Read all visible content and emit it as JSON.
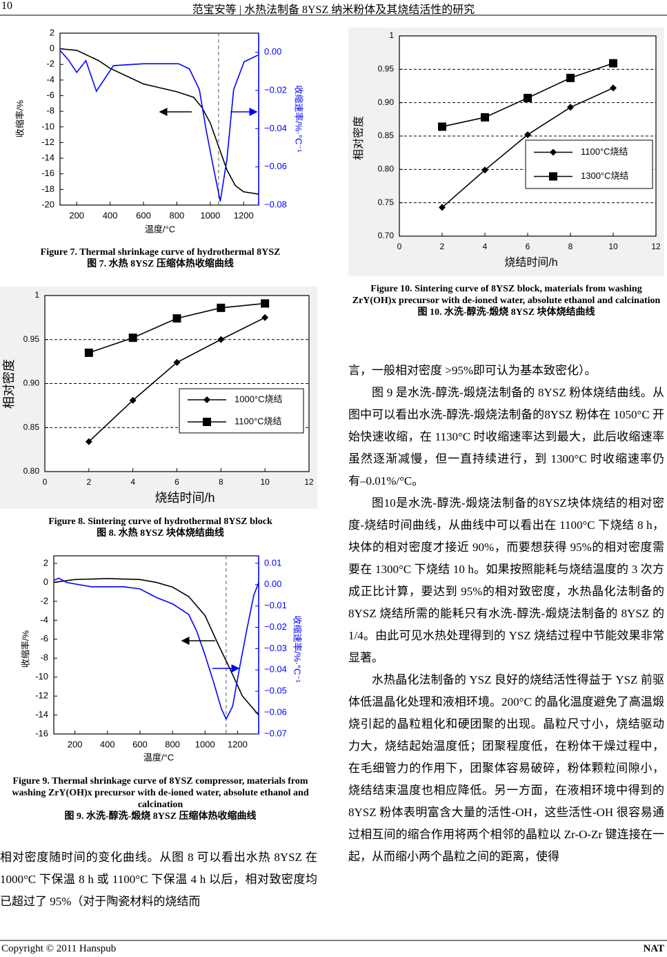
{
  "header": {
    "page": "10",
    "running_title": "范宝安等 | 水热法制备 8YSZ 纳米粉体及其烧结活性的研究"
  },
  "chart_data": [
    {
      "type": "line",
      "xlabel": "温度/°C",
      "ylabel": "收缩率/%",
      "y2label": "收缩速率/%·°C⁻¹",
      "xlim": [
        100,
        1290
      ],
      "xticks": [
        200,
        400,
        600,
        800,
        1000,
        1200
      ],
      "ylim": [
        -20,
        2
      ],
      "yticks": [
        -20,
        -18,
        -16,
        -14,
        -12,
        -10,
        -8,
        -6,
        -4,
        -2,
        0,
        2
      ],
      "y2lim": [
        -0.08,
        0.01
      ],
      "y2ticks": [
        {
          "value": -0.08,
          "label": "−0.08"
        },
        {
          "value": -0.06,
          "label": "−0.06"
        },
        {
          "value": -0.04,
          "label": "−0.04"
        },
        {
          "value": -0.02,
          "label": "−0.02"
        },
        {
          "value": 0,
          "label": "0.00"
        }
      ],
      "grid": false,
      "vline": 1050,
      "series": [
        {
          "name": "收缩率",
          "color": "#000000",
          "marker": "none",
          "x": [
            100,
            200,
            280,
            330,
            400,
            500,
            600,
            700,
            800,
            900,
            950,
            1000,
            1050,
            1100,
            1150,
            1200,
            1290
          ],
          "values": [
            0,
            -0.2,
            -1,
            -1.5,
            -2.5,
            -3.5,
            -4.5,
            -5,
            -5.5,
            -6.2,
            -7.5,
            -9.5,
            -12.5,
            -15.5,
            -17.5,
            -18.3,
            -18.6
          ]
        },
        {
          "name": "收缩速率",
          "color": "#0000ff",
          "marker": "none",
          "axis": "y2",
          "x": [
            100,
            150,
            200,
            255,
            318,
            420,
            600,
            810,
            875,
            935,
            976,
            1025,
            1060,
            1100,
            1140,
            1203,
            1286
          ],
          "values": [
            0.001,
            -0.004,
            -0.0105,
            -0.0044,
            -0.0204,
            -0.007,
            -0.006,
            -0.006,
            -0.0087,
            -0.0196,
            -0.041,
            -0.063,
            -0.078,
            -0.056,
            -0.0196,
            -0.005,
            -0.0015
          ]
        }
      ]
    },
    {
      "type": "line",
      "xlabel": "烧结时间/h",
      "ylabel": "相对密度",
      "xlim": [
        0,
        12
      ],
      "xticks": [
        0,
        2,
        4,
        6,
        8,
        10,
        12
      ],
      "ylim": [
        0.8,
        1
      ],
      "yticks": [
        {
          "value": 0.8,
          "label": "0.80"
        },
        0.85,
        {
          "value": 0.9,
          "label": "0.90"
        },
        0.95,
        1
      ],
      "grid": true,
      "legend": "lower right",
      "series": [
        {
          "name": "1000°C烧结",
          "color": "#000000",
          "marker": "diamond",
          "x": [
            2,
            4,
            6,
            8,
            10
          ],
          "values": [
            0.834,
            0.881,
            0.924,
            0.95,
            0.975
          ]
        },
        {
          "name": "1100°C烧结",
          "color": "#000000",
          "marker": "square",
          "x": [
            2,
            4,
            6,
            8,
            10
          ],
          "values": [
            0.935,
            0.952,
            0.974,
            0.986,
            0.991
          ]
        }
      ]
    },
    {
      "type": "line",
      "xlabel": "温度/°C",
      "ylabel": "收缩率/%",
      "y2label": "收缩速率/%·°C⁻¹",
      "xlim": [
        70,
        1330
      ],
      "xticks": [
        200,
        400,
        600,
        800,
        1000,
        1200
      ],
      "ylim": [
        -16,
        2.8
      ],
      "yticks": [
        -16,
        -14,
        -12,
        -10,
        -8,
        -6,
        -4,
        -2,
        0,
        2
      ],
      "y2lim": [
        -0.07,
        0.0135
      ],
      "y2ticks": [
        {
          "value": -0.07,
          "label": "−0.07"
        },
        {
          "value": -0.06,
          "label": "−0.06"
        },
        {
          "value": -0.05,
          "label": "−0.05"
        },
        {
          "value": -0.04,
          "label": "−0.04"
        },
        {
          "value": -0.03,
          "label": "−0.03"
        },
        {
          "value": -0.02,
          "label": "−0.02"
        },
        {
          "value": -0.01,
          "label": "−0.01"
        },
        {
          "value": 0,
          "label": "0.00"
        },
        0.01
      ],
      "grid": false,
      "vline": 1130,
      "series": [
        {
          "name": "收缩率",
          "color": "#000000",
          "marker": "none",
          "x": [
            70,
            200,
            400,
            600,
            700,
            800,
            900,
            1000,
            1080,
            1150,
            1230,
            1330
          ],
          "values": [
            0,
            0.3,
            0.4,
            0.3,
            0,
            -0.5,
            -1.5,
            -3.5,
            -6.5,
            -9,
            -12,
            -14
          ]
        },
        {
          "name": "收缩速率",
          "color": "#0000ff",
          "marker": "none",
          "axis": "y2",
          "x": [
            70,
            100,
            150,
            300,
            500,
            600,
            700,
            800,
            900,
            950,
            1000,
            1050,
            1100,
            1130,
            1170,
            1210,
            1260,
            1300,
            1330
          ],
          "values": [
            0.002,
            0.003,
            0.001,
            -0.001,
            -0.001,
            -0.002,
            -0.006,
            -0.009,
            -0.014,
            -0.022,
            -0.033,
            -0.045,
            -0.058,
            -0.063,
            -0.057,
            -0.04,
            -0.02,
            -0.005,
            0.001
          ]
        }
      ]
    },
    {
      "type": "line",
      "xlabel": "烧结时间/h",
      "ylabel": "相对密度",
      "xlim": [
        0,
        12
      ],
      "xticks": [
        0,
        2,
        4,
        6,
        8,
        10,
        12
      ],
      "ylim": [
        0.7,
        1
      ],
      "yticks": [
        {
          "value": 0.7,
          "label": "0.70"
        },
        0.75,
        {
          "value": 0.8,
          "label": "0.80"
        },
        0.85,
        {
          "value": 0.9,
          "label": "0.90"
        },
        0.95,
        1
      ],
      "grid": true,
      "legend": "lower right",
      "series": [
        {
          "name": "1100°C烧结",
          "color": "#000000",
          "marker": "diamond",
          "x": [
            2,
            4,
            6,
            8,
            10
          ],
          "values": [
            0.743,
            0.799,
            0.852,
            0.893,
            0.922
          ]
        },
        {
          "name": "1300°C烧结",
          "color": "#000000",
          "marker": "square",
          "x": [
            2,
            4,
            6,
            8,
            10
          ],
          "values": [
            0.864,
            0.878,
            0.907,
            0.937,
            0.959
          ]
        }
      ]
    }
  ],
  "captions": [
    {
      "en": "Figure 7. Thermal shrinkage curve of hydrothermal 8YSZ",
      "zh": "图 7. 水热 8YSZ 压缩体热收缩曲线"
    },
    {
      "en": "Figure 8. Sintering curve of hydrothermal 8YSZ block",
      "zh": "图 8. 水热 8YSZ 块体烧结曲线"
    },
    {
      "en": "Figure 9. Thermal shrinkage curve of 8YSZ compressor, materials from washing ZrY(OH)x precursor with de-ioned water, absolute ethanol and calcination",
      "zh": "图 9. 水洗-醇洗-煅烧 8YSZ 压缩体热收缩曲线"
    },
    {
      "en": "Figure 10. Sintering curve of 8YSZ block, materials from washing ZrY(OH)x precursor with de-ioned water, absolute ethanol and calcination",
      "zh": "图 10. 水洗-醇洗-煅烧 8YSZ 块体烧结曲线"
    }
  ],
  "left_text": [
    "相对密度随时间的变化曲线。从图 8 可以看出水热 8YSZ 在 1000°C 下保温 8 h 或 1100°C 下保温 4 h 以后，相对致密度均已超过了 95%（对于陶瓷材料的烧结而"
  ],
  "right_text": [
    "言，一般相对密度 >95%即可认为基本致密化）。",
    "图 9 是水洗-醇洗-煅烧法制备的 8YSZ 粉体烧结曲线。从图中可以看出水洗-醇洗-煅烧法制备的8YSZ 粉体在 1050°C 开始快速收缩，在 1130°C 时收缩速率达到最大，此后收缩速率虽然逐渐减慢，但一直持续进行，到 1300°C 时收缩速率仍有–0.01%/°C。",
    "图10是水洗-醇洗-煅烧法制备的8YSZ块体烧结的相对密度-烧结时间曲线，从曲线中可以看出在 1100°C 下烧结 8 h，块体的相对密度才接近 90%，而要想获得 95%的相对密度需要在 1300°C 下烧结 10 h。如果按照能耗与烧结温度的 3 次方成正比计算，要达到 95%的相对致密度，水热晶化法制备的 8YSZ 烧结所需的能耗只有水洗-醇洗-煅烧法制备的 8YSZ 的 1/4。由此可见水热处理得到的 YSZ 烧结过程中节能效果非常显著。",
    "水热晶化法制备的 YSZ 良好的烧结活性得益于 YSZ 前驱体低温晶化处理和液相环境。200°C 的晶化温度避免了高温煅烧引起的晶粒粗化和硬团聚的出现。晶粒尺寸小，烧结驱动力大，烧结起始温度低；团聚程度低，在粉体干燥过程中，在毛细管力的作用下，团聚体容易破碎，粉体颗粒间隙小，烧结结束温度也相应降低。另一方面，在液相环境中得到的 8YSZ 粉体表明富含大量的活性-OH，这些活性-OH 很容易通过相互间的缩合作用将两个相邻的晶粒以 Zr-O-Zr 键连接在一起，从而缩小两个晶粒之间的距离，使得"
  ],
  "footer": {
    "copyright": "Copyright © 2011 Hanspub",
    "journal": "NAT"
  }
}
